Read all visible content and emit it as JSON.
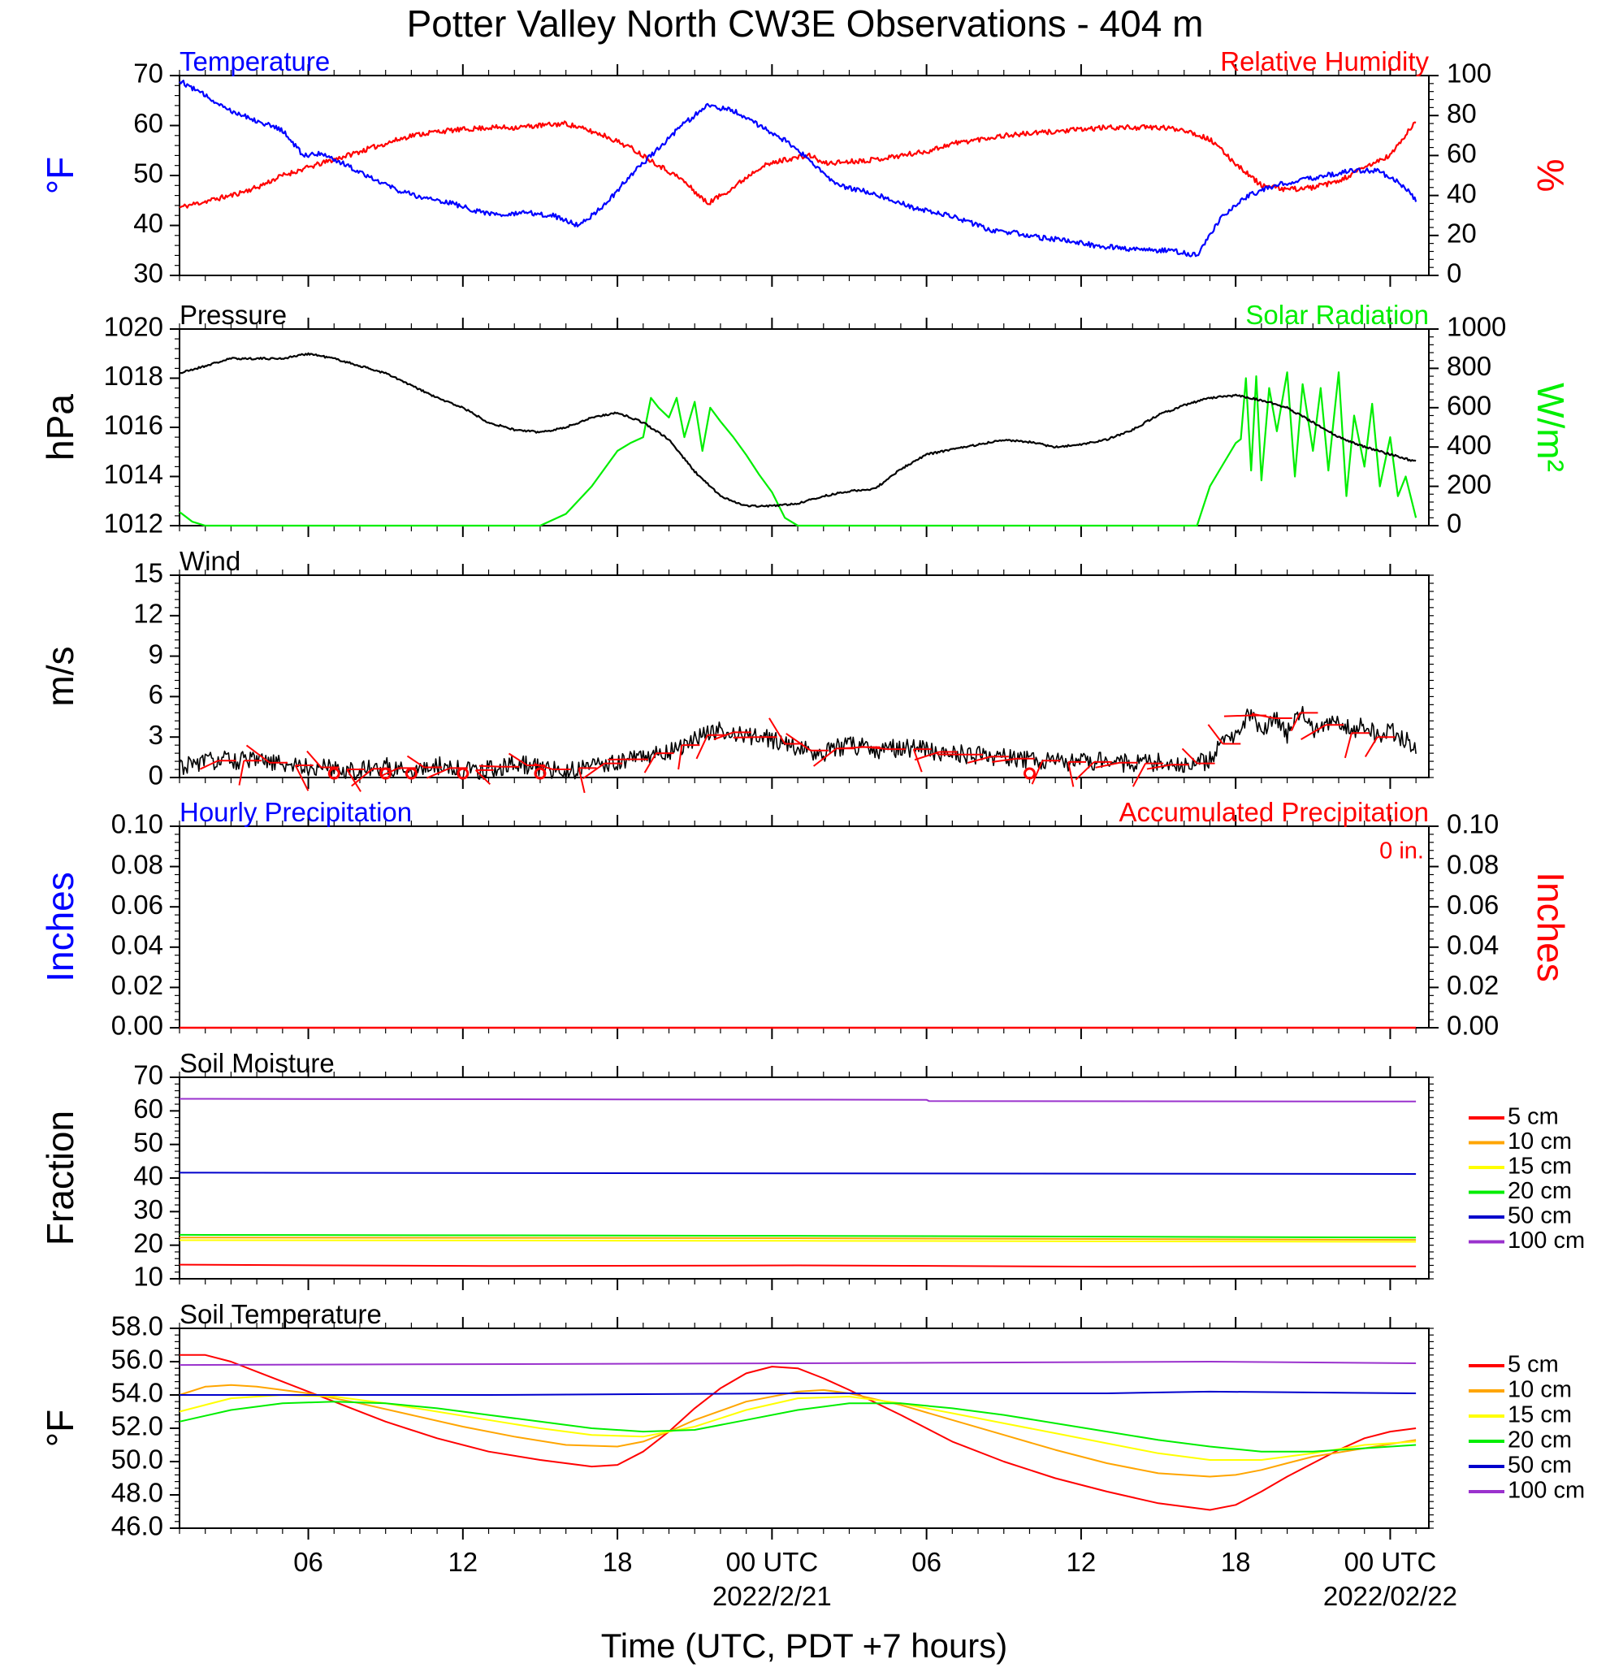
{
  "title": "Potter Valley North CW3E Observations - 404 m",
  "xaxis": {
    "title": "Time (UTC, PDT +7 hours)",
    "range_hours": [
      0,
      48.5
    ],
    "ticks": [
      {
        "hour": 5,
        "label": "06"
      },
      {
        "hour": 11,
        "label": "12"
      },
      {
        "hour": 17,
        "label": "18"
      },
      {
        "hour": 23,
        "label": "00 UTC",
        "sublabel": "2022/2/21"
      },
      {
        "hour": 29,
        "label": "06"
      },
      {
        "hour": 35,
        "label": "12"
      },
      {
        "hour": 41,
        "label": "18"
      },
      {
        "hour": 47,
        "label": "00 UTC",
        "sublabel": "2022/02/22"
      }
    ]
  },
  "colors": {
    "temperature": "#0000ff",
    "humidity": "#ff0000",
    "pressure": "#000000",
    "solar": "#00ee00",
    "wind": "#000000",
    "wind_barb": "#ff0000",
    "accum": "#ff0000",
    "hourly": "#0000ff",
    "depth_colors": [
      "#ff0000",
      "#ffa500",
      "#ffff00",
      "#00ee00",
      "#0000cc",
      "#9a32cd"
    ]
  },
  "chart_data": [
    {
      "type": "line",
      "panel": "temperature_humidity",
      "title_left": "Temperature",
      "title_right": "Relative Humidity",
      "ylabel_left": "°F",
      "ylabel_right": "%",
      "ylim_left": [
        30,
        70
      ],
      "yticks_left": [
        "30",
        "40",
        "50",
        "60",
        "70"
      ],
      "ylim_right": [
        0,
        100
      ],
      "yticks_right": [
        "0",
        "20",
        "40",
        "60",
        "80",
        "100"
      ],
      "series": [
        {
          "name": "Temperature",
          "axis": "left",
          "x": [
            0,
            1,
            2,
            3,
            4,
            4.8,
            5.5,
            6.5,
            7.5,
            8.5,
            9.5,
            10.5,
            11.5,
            12.5,
            13.5,
            14.5,
            15.5,
            16.5,
            17.5,
            18.5,
            19.5,
            20.5,
            21.5,
            22.5,
            23.5,
            24.5,
            25.5,
            26.5,
            27.5,
            28.5,
            29.5,
            30.5,
            31.5,
            32.5,
            33.5,
            34.5,
            35.5,
            36.5,
            37.5,
            38.5,
            39.5,
            40.5,
            41.5,
            42.5,
            43.5,
            44.5,
            45.5,
            46.5,
            47.5,
            48.0
          ],
          "y": [
            69,
            66,
            63,
            61,
            59,
            54,
            54.5,
            52,
            49.5,
            47,
            45.5,
            44.5,
            43,
            42,
            42.5,
            42,
            40,
            44,
            50,
            55,
            60,
            64,
            63,
            60,
            57,
            53,
            48,
            47,
            45.5,
            43.5,
            42.5,
            41,
            39,
            38.5,
            37.5,
            37,
            36,
            35.5,
            35,
            35,
            34,
            42,
            46,
            48,
            49,
            50,
            51,
            51,
            48,
            45
          ]
        },
        {
          "name": "Relative Humidity",
          "axis": "right",
          "x": [
            0,
            1,
            2,
            3,
            4,
            5,
            6,
            7,
            8,
            9,
            10,
            11,
            12,
            13,
            14,
            15,
            15.5,
            16.5,
            17.5,
            18.5,
            19.5,
            20.5,
            21.5,
            22.5,
            23.5,
            24.5,
            25,
            26,
            27,
            28,
            29,
            30,
            31,
            32,
            33,
            34,
            35,
            36,
            37,
            38,
            39,
            40,
            41,
            42,
            43,
            44,
            45,
            46,
            47,
            48.0
          ],
          "y": [
            34,
            37,
            40,
            44,
            50,
            54,
            58,
            62,
            66,
            70,
            72,
            73,
            74,
            74,
            75,
            76,
            74,
            70,
            64,
            56,
            48,
            36,
            44,
            54,
            58,
            60,
            56,
            57,
            58,
            60,
            62,
            66,
            68,
            70,
            71,
            72,
            73,
            74,
            74,
            74,
            73,
            68,
            56,
            45,
            43,
            44,
            47,
            54,
            60,
            77
          ]
        }
      ]
    },
    {
      "type": "line",
      "panel": "pressure_solar",
      "title_left": "Pressure",
      "title_right": "Solar Radiation",
      "ylabel_left": "hPa",
      "ylabel_right": "W/m²",
      "ylim_left": [
        1012,
        1020
      ],
      "yticks_left": [
        "1012",
        "1014",
        "1016",
        "1018",
        "1020"
      ],
      "ylim_right": [
        0,
        1000
      ],
      "yticks_right": [
        "0",
        "200",
        "400",
        "600",
        "800",
        "1000"
      ],
      "series": [
        {
          "name": "Pressure",
          "axis": "left",
          "x": [
            0,
            1,
            2,
            3,
            4,
            5,
            6,
            7,
            8,
            9,
            10,
            11,
            12,
            13,
            14,
            15,
            16,
            17,
            18,
            19,
            20,
            21,
            22,
            23,
            24,
            25,
            26,
            27,
            28,
            29,
            30,
            31,
            32,
            33,
            34,
            35,
            36,
            37,
            38,
            39,
            40,
            41,
            42,
            43,
            44,
            45,
            46,
            47,
            48.0
          ],
          "y": [
            1018.2,
            1018.5,
            1018.8,
            1018.8,
            1018.8,
            1019.0,
            1018.8,
            1018.5,
            1018.2,
            1017.7,
            1017.2,
            1016.8,
            1016.2,
            1015.9,
            1015.8,
            1016.0,
            1016.4,
            1016.6,
            1016.2,
            1015.5,
            1014.2,
            1013.2,
            1012.8,
            1012.8,
            1012.9,
            1013.2,
            1013.4,
            1013.5,
            1014.3,
            1014.9,
            1015.1,
            1015.3,
            1015.5,
            1015.4,
            1015.2,
            1015.3,
            1015.5,
            1015.9,
            1016.5,
            1016.9,
            1017.2,
            1017.3,
            1017.1,
            1016.8,
            1016.2,
            1015.6,
            1015.2,
            1014.9,
            1014.6
          ]
        },
        {
          "name": "Solar Radiation",
          "axis": "right",
          "x": [
            0,
            0.5,
            1,
            14,
            15,
            16,
            17,
            17.5,
            18,
            18.3,
            18.6,
            19,
            19.3,
            19.6,
            20,
            20.3,
            20.6,
            21,
            21.5,
            22,
            22.5,
            23,
            23.5,
            24,
            24.5,
            39.5,
            40,
            40.5,
            41,
            41.2,
            41.4,
            41.6,
            41.8,
            42,
            42.3,
            42.6,
            43,
            43.3,
            43.6,
            44,
            44.3,
            44.6,
            45,
            45.3,
            45.6,
            46,
            46.3,
            46.6,
            47,
            47.3,
            47.6,
            48.0
          ],
          "y": [
            70,
            20,
            0,
            0,
            60,
            200,
            380,
            420,
            450,
            650,
            600,
            550,
            650,
            450,
            630,
            380,
            600,
            530,
            450,
            360,
            260,
            170,
            40,
            0,
            0,
            0,
            200,
            310,
            420,
            440,
            750,
            280,
            760,
            230,
            700,
            480,
            780,
            250,
            720,
            380,
            700,
            280,
            780,
            150,
            560,
            300,
            620,
            200,
            450,
            150,
            250,
            40
          ]
        }
      ]
    },
    {
      "type": "line",
      "panel": "wind",
      "title_left": "Wind",
      "ylabel_left": "m/s",
      "ylim_left": [
        0,
        15
      ],
      "yticks_left": [
        "0",
        "3",
        "6",
        "9",
        "12",
        "15"
      ],
      "series": [
        {
          "name": "Wind",
          "axis": "left",
          "x": [
            0,
            1,
            2,
            3,
            4,
            5,
            6,
            7,
            8,
            9,
            10,
            11,
            12,
            13,
            14,
            15,
            16,
            17,
            18,
            19,
            20,
            21,
            22,
            23,
            24,
            25,
            26,
            27,
            28,
            29,
            30,
            31,
            32,
            33,
            34,
            35,
            36,
            37,
            38,
            39,
            40,
            40.5,
            41,
            41.5,
            42,
            42.5,
            43,
            43.5,
            44,
            44.5,
            45,
            45.5,
            46,
            46.5,
            47,
            48.0
          ],
          "y": [
            0.8,
            1.2,
            1.3,
            1.2,
            1.0,
            0.8,
            0.7,
            0.5,
            0.8,
            0.6,
            0.9,
            0.5,
            0.6,
            1.0,
            0.8,
            0.4,
            1.0,
            1.1,
            1.6,
            2.0,
            2.8,
            3.5,
            3.2,
            2.8,
            2.2,
            1.8,
            2.5,
            2.0,
            2.2,
            2.0,
            1.8,
            1.6,
            1.5,
            1.3,
            1.2,
            1.1,
            1.2,
            1.0,
            1.1,
            0.8,
            1.3,
            2.5,
            3.2,
            4.6,
            3.5,
            4.4,
            3.2,
            4.8,
            3.6,
            3.9,
            4.3,
            3.3,
            3.9,
            3.0,
            3.5,
            2.2
          ]
        }
      ],
      "calm_markers_hours": [
        6,
        8,
        9,
        11,
        14,
        33
      ]
    },
    {
      "type": "line",
      "panel": "precipitation",
      "title_left": "Hourly Precipitation",
      "title_right": "Accumulated Precipitation",
      "annotation": "0 in.",
      "ylabel_left": "Inches",
      "ylabel_right": "Inches",
      "ylim_left": [
        0,
        0.1
      ],
      "yticks_left": [
        "0.00",
        "0.02",
        "0.04",
        "0.06",
        "0.08",
        "0.10"
      ],
      "ylim_right": [
        0,
        0.1
      ],
      "yticks_right": [
        "0.00",
        "0.02",
        "0.04",
        "0.06",
        "0.08",
        "0.10"
      ],
      "series": [
        {
          "name": "Accumulated Precipitation",
          "axis": "right",
          "x": [
            0,
            48.0
          ],
          "y": [
            0,
            0
          ]
        }
      ]
    },
    {
      "type": "line",
      "panel": "soil_moisture",
      "title_left": "Soil Moisture",
      "ylabel_left": "Fraction",
      "ylim_left": [
        10,
        70
      ],
      "yticks_left": [
        "10",
        "20",
        "30",
        "40",
        "50",
        "60",
        "70"
      ],
      "legend_position": "right",
      "series": [
        {
          "name": "5 cm",
          "x": [
            0,
            12,
            24,
            36,
            48
          ],
          "y": [
            14.2,
            13.8,
            14.0,
            13.6,
            13.7
          ]
        },
        {
          "name": "10 cm",
          "x": [
            0,
            24,
            48
          ],
          "y": [
            22.3,
            22.1,
            21.6
          ]
        },
        {
          "name": "15 cm",
          "x": [
            0,
            24,
            48
          ],
          "y": [
            21.5,
            21.3,
            21.0
          ]
        },
        {
          "name": "20 cm",
          "x": [
            0,
            24,
            48
          ],
          "y": [
            23.1,
            22.8,
            22.3
          ]
        },
        {
          "name": "50 cm",
          "x": [
            0,
            24,
            48
          ],
          "y": [
            41.6,
            41.4,
            41.2
          ]
        },
        {
          "name": "100 cm",
          "x": [
            0,
            29,
            29.1,
            48
          ],
          "y": [
            63.6,
            63.3,
            62.9,
            62.8
          ]
        }
      ]
    },
    {
      "type": "line",
      "panel": "soil_temperature",
      "title_left": "Soil Temperature",
      "ylabel_left": "°F",
      "ylim_left": [
        46,
        58
      ],
      "yticks_left": [
        "46.0",
        "48.0",
        "50.0",
        "52.0",
        "54.0",
        "56.0",
        "58.0"
      ],
      "legend_position": "right",
      "series": [
        {
          "name": "5 cm",
          "x": [
            0,
            1,
            2,
            3,
            4,
            5,
            6,
            8,
            10,
            12,
            14,
            16,
            17,
            18,
            19,
            20,
            21,
            22,
            23,
            24,
            25,
            26,
            28,
            30,
            32,
            34,
            36,
            38,
            40,
            41,
            42,
            43,
            44,
            45,
            46,
            47,
            48.0
          ],
          "y": [
            56.4,
            56.4,
            56.0,
            55.4,
            54.8,
            54.2,
            53.6,
            52.4,
            51.4,
            50.6,
            50.1,
            49.7,
            49.8,
            50.6,
            51.8,
            53.2,
            54.4,
            55.3,
            55.7,
            55.6,
            55.0,
            54.3,
            52.8,
            51.2,
            50.0,
            49.0,
            48.2,
            47.5,
            47.1,
            47.4,
            48.2,
            49.1,
            49.9,
            50.7,
            51.4,
            51.8,
            52.0
          ]
        },
        {
          "name": "10 cm",
          "x": [
            0,
            1,
            2,
            3,
            5,
            7,
            9,
            11,
            13,
            15,
            17,
            18,
            19,
            20,
            22,
            24,
            25,
            26,
            28,
            30,
            32,
            34,
            36,
            38,
            40,
            41,
            42,
            43,
            44,
            46,
            48.0
          ],
          "y": [
            54.0,
            54.5,
            54.6,
            54.5,
            54.1,
            53.5,
            52.8,
            52.1,
            51.5,
            51.0,
            50.9,
            51.2,
            51.8,
            52.5,
            53.6,
            54.2,
            54.3,
            54.1,
            53.4,
            52.5,
            51.6,
            50.7,
            49.9,
            49.3,
            49.1,
            49.2,
            49.5,
            49.9,
            50.3,
            50.8,
            51.3
          ]
        },
        {
          "name": "15 cm",
          "x": [
            0,
            2,
            4,
            6,
            8,
            10,
            12,
            14,
            16,
            18,
            20,
            22,
            24,
            26,
            28,
            30,
            32,
            34,
            36,
            38,
            40,
            42,
            44,
            46,
            48.0
          ],
          "y": [
            53.0,
            53.8,
            54.0,
            53.9,
            53.5,
            53.0,
            52.5,
            52.0,
            51.6,
            51.5,
            52.1,
            53.1,
            53.8,
            53.9,
            53.5,
            52.9,
            52.3,
            51.7,
            51.1,
            50.5,
            50.1,
            50.1,
            50.5,
            51.0,
            51.2
          ]
        },
        {
          "name": "20 cm",
          "x": [
            0,
            2,
            4,
            6,
            8,
            10,
            12,
            14,
            16,
            18,
            20,
            22,
            24,
            26,
            28,
            30,
            32,
            34,
            36,
            38,
            40,
            42,
            44,
            46,
            48.0
          ],
          "y": [
            52.4,
            53.1,
            53.5,
            53.6,
            53.5,
            53.2,
            52.8,
            52.4,
            52.0,
            51.8,
            51.9,
            52.5,
            53.1,
            53.5,
            53.5,
            53.2,
            52.8,
            52.3,
            51.8,
            51.3,
            50.9,
            50.6,
            50.6,
            50.8,
            51.0
          ]
        },
        {
          "name": "50 cm",
          "x": [
            0,
            12,
            24,
            36,
            40,
            48
          ],
          "y": [
            54.0,
            54.0,
            54.1,
            54.1,
            54.2,
            54.1
          ]
        },
        {
          "name": "100 cm",
          "x": [
            0,
            24,
            40,
            48
          ],
          "y": [
            55.8,
            55.9,
            56.0,
            55.9
          ]
        }
      ]
    }
  ]
}
